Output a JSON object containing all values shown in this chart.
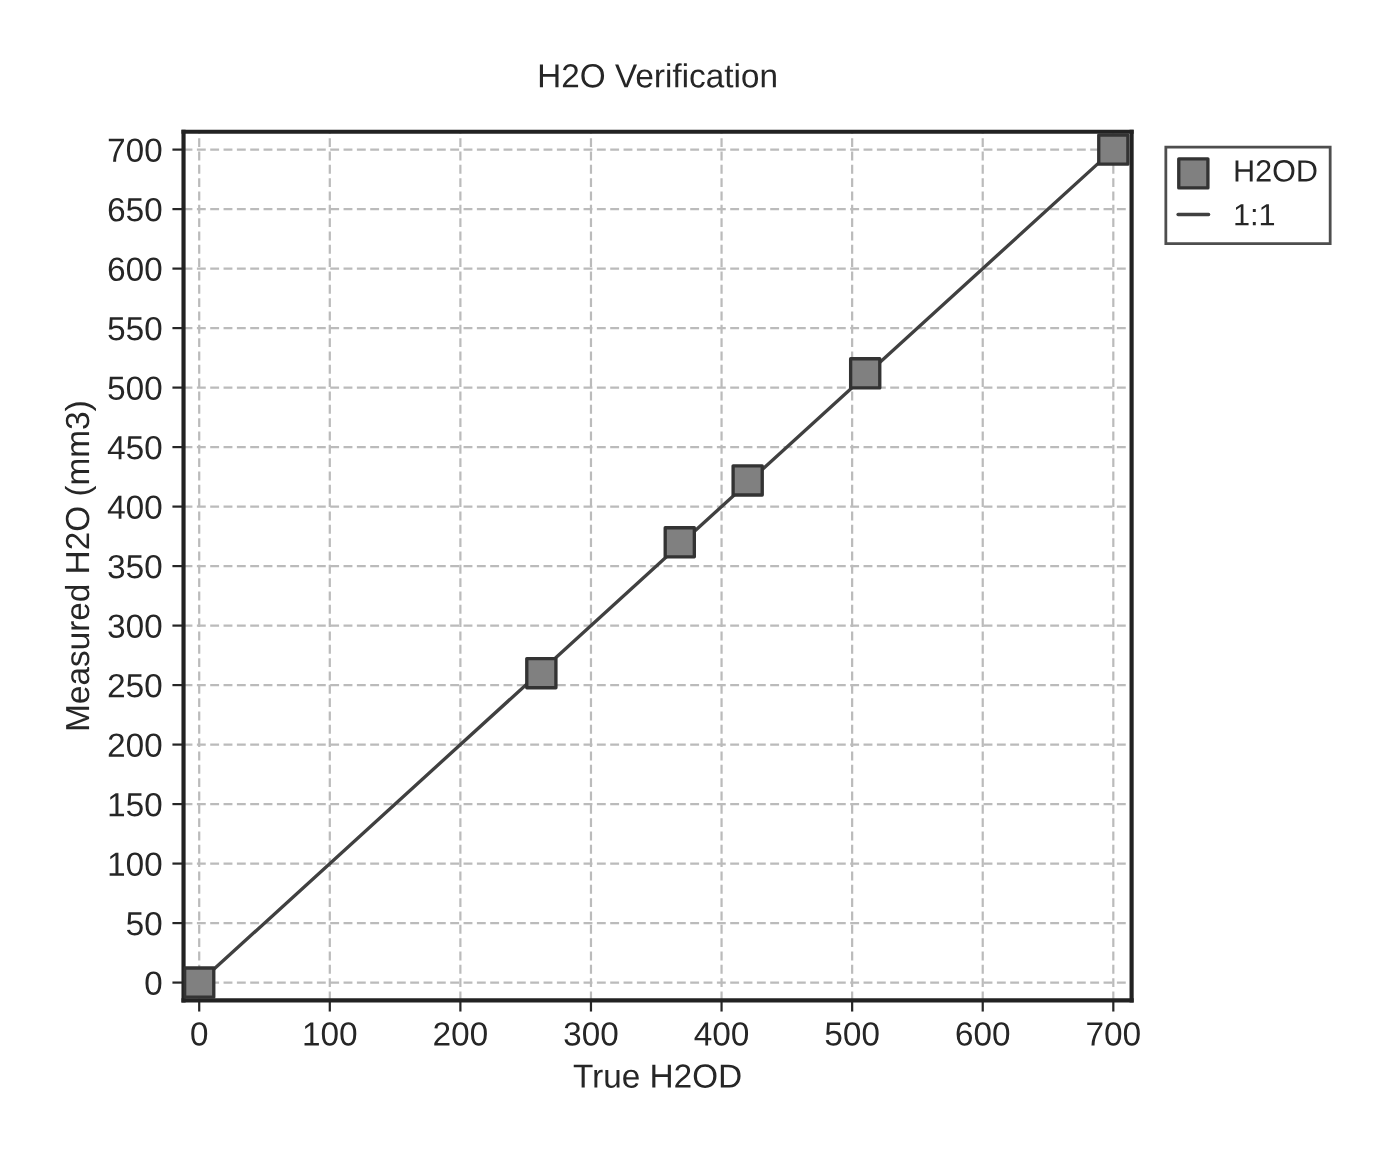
{
  "chart_data": {
    "type": "scatter",
    "title": "H2O Verification",
    "xlabel": "True H2OD",
    "ylabel": "Measured H2O (mm3)",
    "series": [
      {
        "name": "H2OD",
        "color": "#808080",
        "marker": "square",
        "x": [
          0,
          262,
          368,
          420,
          510,
          700
        ],
        "values": [
          0,
          260,
          370,
          422,
          512,
          700
        ]
      },
      {
        "name": "1:1",
        "type": "line",
        "color": "#404040",
        "marker": "none",
        "line_style": "solid",
        "x": [
          0,
          700
        ],
        "values": [
          0,
          700
        ]
      }
    ],
    "xlim": [
      -12,
      714
    ],
    "ylim": [
      -15,
      715
    ],
    "xticks": [
      0,
      100,
      200,
      300,
      400,
      500,
      600,
      700
    ],
    "yticks": [
      0,
      50,
      100,
      150,
      200,
      250,
      300,
      350,
      400,
      450,
      500,
      550,
      600,
      650,
      700
    ],
    "grid": true,
    "legend": "top right"
  }
}
